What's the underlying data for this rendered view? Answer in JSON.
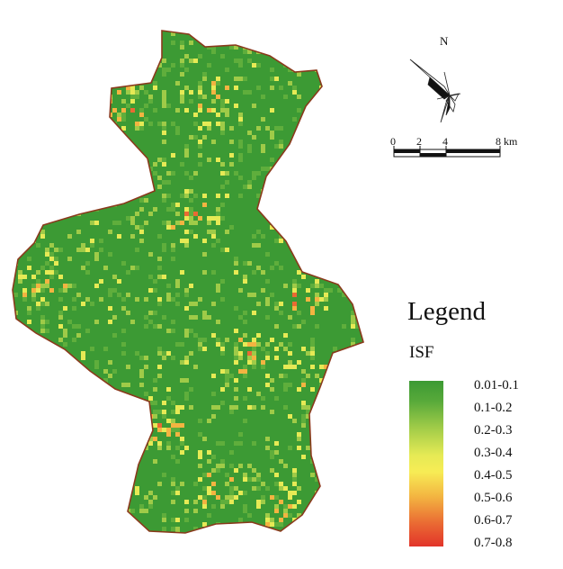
{
  "map": {
    "north_label": "N",
    "scale": {
      "ticks": [
        "0",
        "2",
        "4",
        "8 km"
      ]
    },
    "legend": {
      "title": "Legend",
      "subtitle": "ISF",
      "classes": [
        "0.01-0.1",
        "0.1-0.2",
        "0.2-0.3",
        "0.3-0.4",
        "0.4-0.5",
        "0.5-0.6",
        "0.6-0.7",
        "0.7-0.8"
      ]
    },
    "colors": {
      "low": "#3c9a34",
      "mid": "#f7ec55",
      "high": "#e2342a",
      "boundary": "#8a3a1c"
    }
  }
}
